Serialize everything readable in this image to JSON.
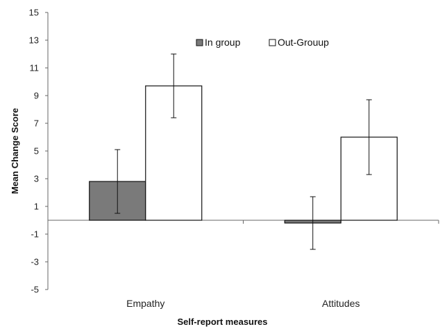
{
  "chart_data": {
    "type": "bar",
    "categories": [
      "Empathy",
      "Attitudes"
    ],
    "series": [
      {
        "name": "In group",
        "values": [
          2.8,
          -0.2
        ],
        "error": [
          2.3,
          1.9
        ],
        "color": "#7a7a7a"
      },
      {
        "name": "Out-Grouup",
        "values": [
          9.7,
          6.0
        ],
        "error": [
          2.3,
          2.7
        ],
        "color": "#ffffff"
      }
    ],
    "xlabel": "Self-report measures",
    "ylabel": "Mean Change Score",
    "ylim": [
      -5,
      15
    ],
    "yticks": [
      15,
      13,
      11,
      9,
      7,
      5,
      3,
      1,
      -1,
      -3,
      -5
    ],
    "ytick_labels": [
      "15",
      "13",
      "11",
      "9",
      "7",
      "5",
      "3",
      "1",
      "-1",
      "-3",
      "-5"
    ],
    "legend_position": "top-center",
    "grid": false
  }
}
